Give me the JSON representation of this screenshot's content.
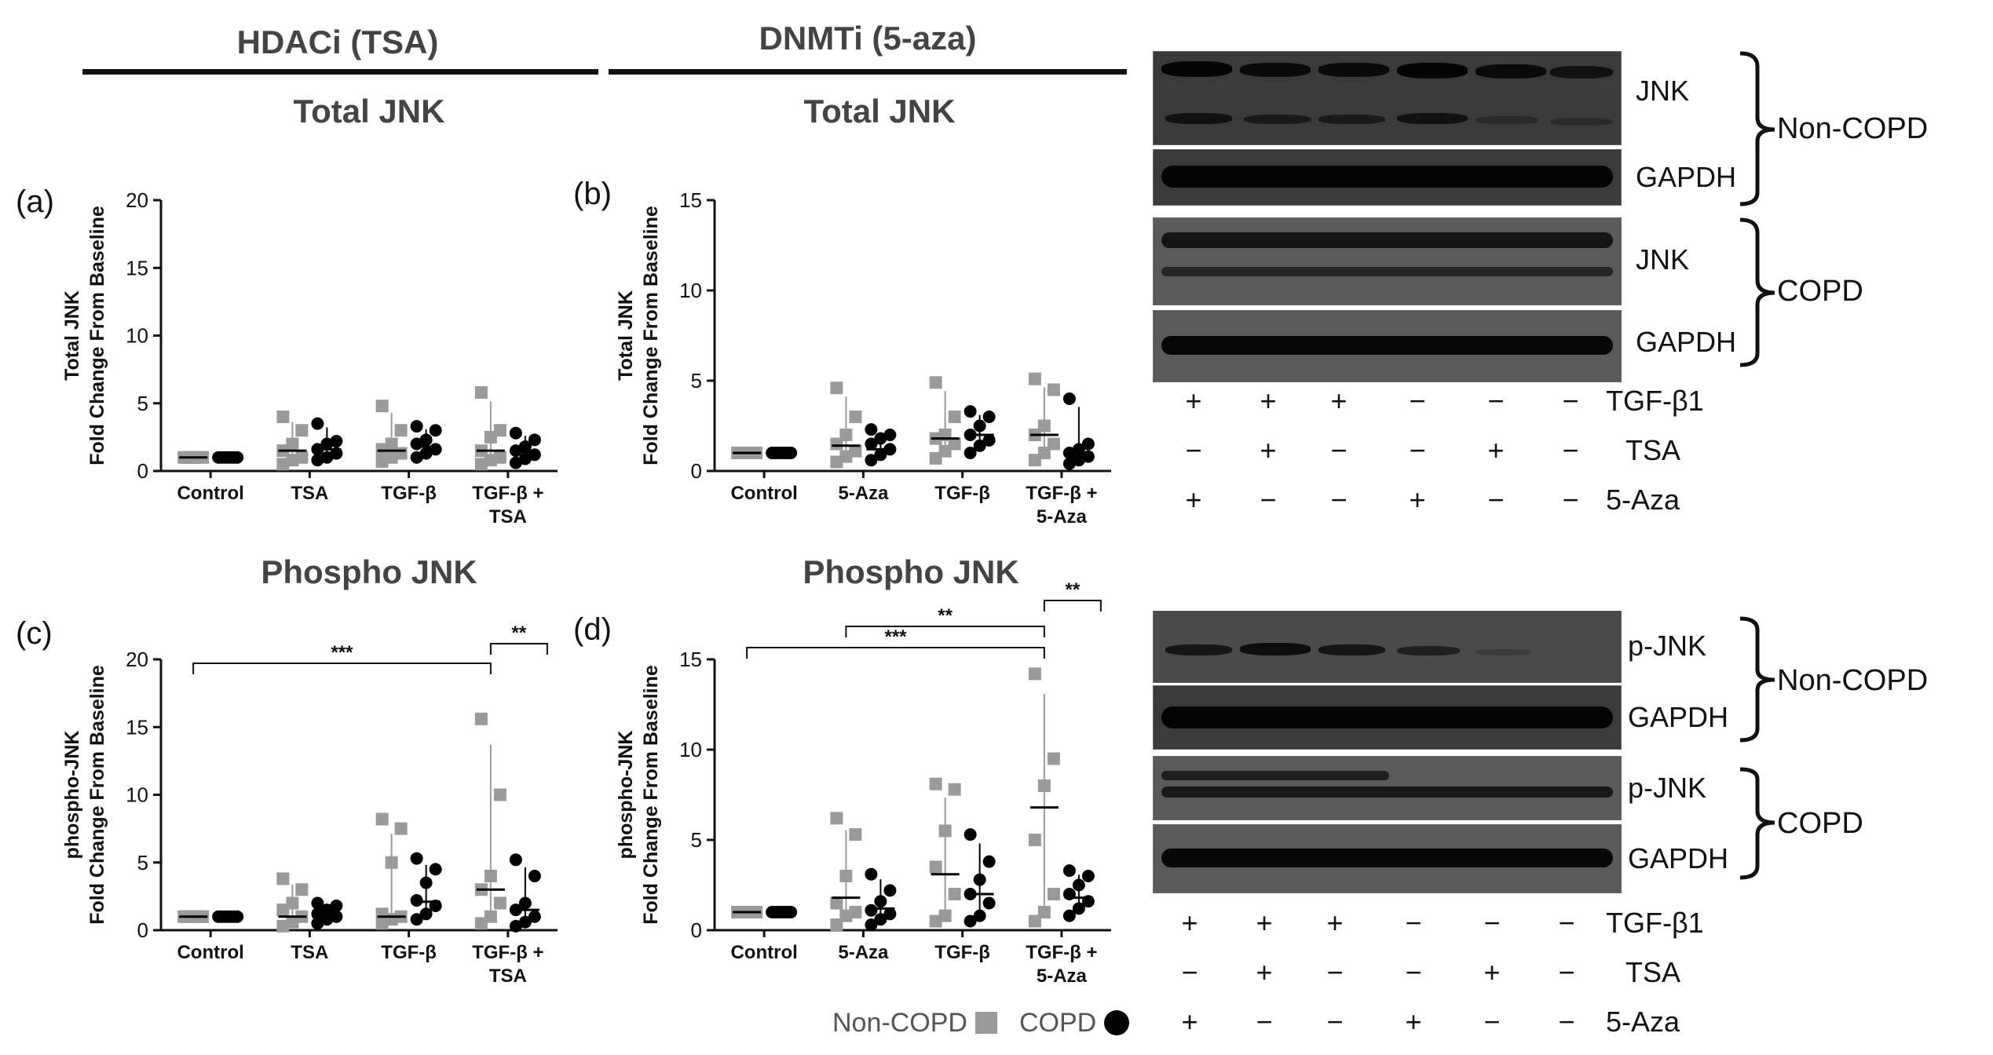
{
  "headers": {
    "left": "HDACi (TSA)",
    "right": "DNMTi (5-aza)"
  },
  "panels": [
    {
      "id": "a",
      "tag": "(a)",
      "title": "Total JNK",
      "ylabel_top": "Total JNK",
      "ylabel_bottom": "Fold Change From Baseline",
      "ymax": 20,
      "ticks": [
        "0",
        "5",
        "10",
        "15",
        "20"
      ],
      "categories": [
        [
          "Control"
        ],
        [
          "TSA"
        ],
        [
          "TGF-β"
        ],
        [
          "TGF-β +",
          "TSA"
        ]
      ],
      "brackets": []
    },
    {
      "id": "b",
      "tag": "(b)",
      "title": "Total JNK",
      "ylabel_top": "Total JNK",
      "ylabel_bottom": "Fold Change From Baseline",
      "ymax": 15,
      "ticks": [
        "0",
        "5",
        "10",
        "15"
      ],
      "categories": [
        [
          "Control"
        ],
        [
          "5-Aza"
        ],
        [
          "TGF-β"
        ],
        [
          "TGF-β +",
          "5-Aza"
        ]
      ],
      "brackets": []
    },
    {
      "id": "c",
      "tag": "(c)",
      "title": "Phospho JNK",
      "ylabel_top": "phospho-JNK",
      "ylabel_bottom": "Fold Change From Baseline",
      "ymax": 20,
      "ticks": [
        "0",
        "5",
        "10",
        "15",
        "20"
      ],
      "categories": [
        [
          "Control"
        ],
        [
          "TSA"
        ],
        [
          "TGF-β"
        ],
        [
          "TGF-β +",
          "TSA"
        ]
      ],
      "brackets": [
        {
          "from": 0,
          "to": 3,
          "label": "***"
        },
        {
          "from": 3,
          "to": 3.6,
          "label": "**"
        }
      ]
    },
    {
      "id": "d",
      "tag": "(d)",
      "title": "Phospho JNK",
      "ylabel_top": "phospho-JNK",
      "ylabel_bottom": "Fold Change From Baseline",
      "ymax": 15,
      "ticks": [
        "0",
        "5",
        "10",
        "15"
      ],
      "categories": [
        [
          "Control"
        ],
        [
          "5-Aza"
        ],
        [
          "TGF-β"
        ],
        [
          "TGF-β +",
          "5-Aza"
        ]
      ],
      "brackets": [
        {
          "from": 0,
          "to": 3,
          "label": "***"
        },
        {
          "from": 1,
          "to": 3,
          "label": "**"
        },
        {
          "from": 3,
          "to": 3.6,
          "label": "**"
        }
      ]
    }
  ],
  "chart_data": [
    {
      "type": "scatter",
      "panel": "a",
      "title": "Total JNK",
      "ylabel": "Total JNK Fold Change From Baseline",
      "ylim": [
        0,
        20
      ],
      "categories": [
        "Control",
        "TSA",
        "TGF-β",
        "TGF-β + TSA"
      ],
      "series": [
        {
          "name": "Non-COPD",
          "values": [
            [
              1,
              1,
              1,
              1,
              1,
              1,
              1
            ],
            [
              0.5,
              0.8,
              1.0,
              1.5,
              2.0,
              3.0,
              4.0
            ],
            [
              0.7,
              1.0,
              1.3,
              1.6,
              2.0,
              3.0,
              4.8
            ],
            [
              0.5,
              0.8,
              1.0,
              1.5,
              2.5,
              3.0,
              5.8
            ]
          ],
          "medians": [
            1,
            1.5,
            1.5,
            1.5
          ]
        },
        {
          "name": "COPD",
          "values": [
            [
              1,
              1,
              1,
              1,
              1,
              1,
              1
            ],
            [
              0.8,
              1.0,
              1.3,
              1.6,
              2.0,
              2.2,
              3.5
            ],
            [
              1.0,
              1.3,
              1.6,
              2.0,
              2.3,
              3.0,
              3.3
            ],
            [
              0.6,
              0.9,
              1.2,
              1.5,
              1.8,
              2.3,
              2.8
            ]
          ],
          "medians": [
            1,
            1.6,
            1.8,
            1.4
          ]
        }
      ]
    },
    {
      "type": "scatter",
      "panel": "b",
      "title": "Total JNK",
      "ylabel": "Total JNK Fold Change From Baseline",
      "ylim": [
        0,
        15
      ],
      "categories": [
        "Control",
        "5-Aza",
        "TGF-β",
        "TGF-β + 5-Aza"
      ],
      "series": [
        {
          "name": "Non-COPD",
          "values": [
            [
              1,
              1,
              1,
              1,
              1,
              1,
              1
            ],
            [
              0.5,
              0.8,
              1.1,
              1.5,
              2.0,
              3.0,
              4.6
            ],
            [
              0.7,
              1.1,
              1.5,
              1.8,
              2.0,
              3.0,
              4.9
            ],
            [
              0.6,
              1.0,
              1.5,
              2.0,
              2.5,
              4.5,
              5.1
            ]
          ],
          "medians": [
            1,
            1.4,
            1.8,
            2.0
          ]
        },
        {
          "name": "COPD",
          "values": [
            [
              1,
              1,
              1,
              1,
              1,
              1,
              1
            ],
            [
              0.6,
              0.9,
              1.2,
              1.5,
              1.8,
              2.0,
              2.3
            ],
            [
              1.0,
              1.4,
              1.7,
              2.0,
              2.5,
              3.0,
              3.3
            ],
            [
              0.4,
              0.6,
              0.8,
              1.0,
              1.2,
              1.5,
              4.0
            ]
          ],
          "medians": [
            1,
            1.2,
            2.0,
            1.0
          ]
        }
      ]
    },
    {
      "type": "scatter",
      "panel": "c",
      "title": "Phospho JNK",
      "ylabel": "phospho-JNK Fold Change From Baseline",
      "ylim": [
        0,
        20
      ],
      "categories": [
        "Control",
        "TSA",
        "TGF-β",
        "TGF-β + TSA"
      ],
      "series": [
        {
          "name": "Non-COPD",
          "values": [
            [
              1,
              1,
              1,
              1,
              1,
              1,
              1
            ],
            [
              0.3,
              0.6,
              1.0,
              1.5,
              2.0,
              3.0,
              3.8
            ],
            [
              0.5,
              0.8,
              1.0,
              1.2,
              5.0,
              7.5,
              8.2
            ],
            [
              0.5,
              1.0,
              2.0,
              3.0,
              4.0,
              10.0,
              15.6
            ]
          ],
          "medians": [
            1,
            1.0,
            1.0,
            3.0
          ]
        },
        {
          "name": "COPD",
          "values": [
            [
              1,
              1,
              1,
              1,
              1,
              1,
              1
            ],
            [
              0.5,
              0.8,
              1.0,
              1.2,
              1.5,
              1.8,
              2.0
            ],
            [
              0.8,
              1.2,
              1.8,
              2.2,
              3.5,
              4.5,
              5.3
            ],
            [
              0.3,
              0.6,
              1.0,
              1.5,
              2.0,
              4.0,
              5.2
            ]
          ],
          "medians": [
            1,
            1.2,
            2.1,
            1.5
          ]
        }
      ]
    },
    {
      "type": "scatter",
      "panel": "d",
      "title": "Phospho JNK",
      "ylabel": "phospho-JNK Fold Change From Baseline",
      "ylim": [
        0,
        15
      ],
      "categories": [
        "Control",
        "5-Aza",
        "TGF-β",
        "TGF-β + 5-Aza"
      ],
      "series": [
        {
          "name": "Non-COPD",
          "values": [
            [
              1,
              1,
              1,
              1,
              1,
              1,
              1
            ],
            [
              0.3,
              0.8,
              1.0,
              1.5,
              3.0,
              5.3,
              6.2
            ],
            [
              0.5,
              0.8,
              2.0,
              3.5,
              5.5,
              7.8,
              8.1
            ],
            [
              0.5,
              1.0,
              2.0,
              5.0,
              8.0,
              9.5,
              14.2
            ]
          ],
          "medians": [
            1,
            1.8,
            3.1,
            6.8
          ]
        },
        {
          "name": "COPD",
          "values": [
            [
              1,
              1,
              1,
              1,
              1,
              1,
              1
            ],
            [
              0.3,
              0.6,
              0.9,
              1.1,
              1.6,
              2.2,
              3.1
            ],
            [
              0.5,
              0.8,
              1.5,
              2.0,
              2.8,
              3.8,
              5.3
            ],
            [
              0.8,
              1.2,
              1.6,
              2.0,
              2.5,
              3.0,
              3.3
            ]
          ],
          "medians": [
            1,
            1.2,
            2.0,
            1.8
          ]
        }
      ]
    }
  ],
  "legend": {
    "noncopd": "Non-COPD",
    "copd": "COPD",
    "noncopd_color": "#9a9a9a",
    "copd_color": "#000000"
  },
  "blots": {
    "top": {
      "labels": [
        "JNK",
        "GAPDH",
        "JNK",
        "GAPDH"
      ],
      "groups": [
        "Non-COPD",
        "COPD"
      ],
      "rows": [
        {
          "label": "TGF-β1",
          "signs": [
            "+",
            "+",
            "+",
            "−",
            "−",
            "−"
          ]
        },
        {
          "label": "TSA",
          "signs": [
            "−",
            "+",
            "−",
            "−",
            "+",
            "−"
          ]
        },
        {
          "label": "5-Aza",
          "signs": [
            "+",
            "−",
            "−",
            "+",
            "−",
            "−"
          ]
        }
      ]
    },
    "bottom": {
      "labels": [
        "p-JNK",
        "GAPDH",
        "p-JNK",
        "GAPDH"
      ],
      "groups": [
        "Non-COPD",
        "COPD"
      ],
      "rows": [
        {
          "label": "TGF-β1",
          "signs": [
            "+",
            "+",
            "+",
            "−",
            "−",
            "−"
          ]
        },
        {
          "label": "TSA",
          "signs": [
            "−",
            "+",
            "−",
            "−",
            "+",
            "−"
          ]
        },
        {
          "label": "5-Aza",
          "signs": [
            "+",
            "−",
            "−",
            "+",
            "−",
            "−"
          ]
        }
      ]
    }
  }
}
